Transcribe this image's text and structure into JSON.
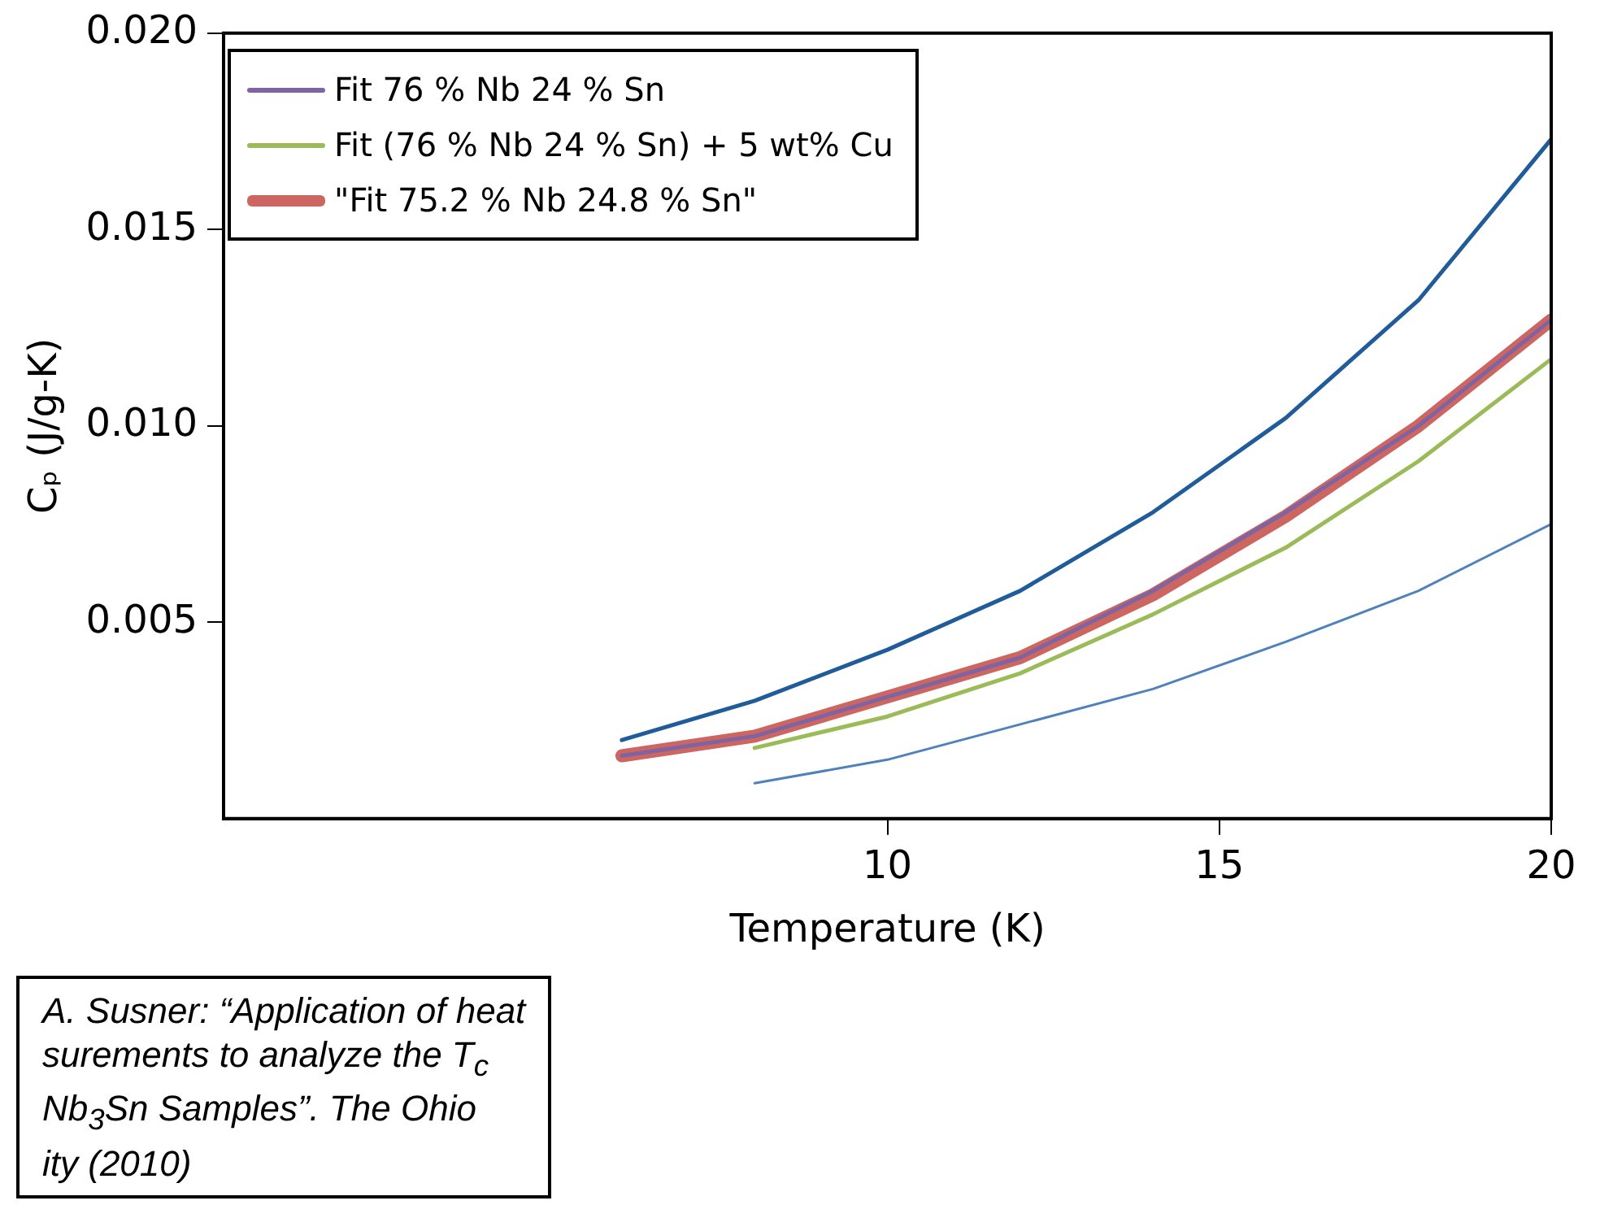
{
  "chart_data": {
    "type": "line",
    "xlabel": "Temperature (K)",
    "ylabel": "Cₚ (J/g-K)",
    "xlim": [
      0,
      20
    ],
    "xticks": [
      10,
      15,
      20
    ],
    "ylim": [
      0,
      0.02
    ],
    "yticks": [
      {
        "value": 0.005,
        "label": "0.005"
      },
      {
        "value": 0.01,
        "label": "0.010"
      },
      {
        "value": 0.015,
        "label": "0.015"
      },
      {
        "value": 0.02,
        "label": "0.020"
      }
    ],
    "legend": "top left",
    "grid": false,
    "marker": "none",
    "line_style": "solid",
    "series": [
      {
        "color": "#4f81bd",
        "x": [
          8,
          10,
          12,
          14,
          16,
          18,
          20
        ],
        "values": [
          0.0009,
          0.0015,
          0.0024,
          0.0033,
          0.0045,
          0.0058,
          0.0075
        ]
      },
      {
        "color": "#1f5c99",
        "x": [
          6,
          8,
          10,
          12,
          14,
          16,
          18,
          20
        ],
        "values": [
          0.002,
          0.003,
          0.0043,
          0.0058,
          0.0078,
          0.0102,
          0.0132,
          0.0173
        ]
      },
      {
        "name": "Fit 76 % Nb 24 % Sn",
        "color": "#8064a2",
        "x": [
          6,
          8,
          10,
          12,
          14,
          16,
          18,
          20
        ],
        "values": [
          0.0016,
          0.0021,
          0.0031,
          0.0041,
          0.0058,
          0.0078,
          0.01,
          0.0127
        ]
      },
      {
        "name": "Fit (76 % Nb 24 % Sn) + 5 wt% Cu",
        "color": "#9bbb59",
        "x": [
          8,
          10,
          12,
          14,
          16,
          18,
          20
        ],
        "values": [
          0.0018,
          0.0026,
          0.0037,
          0.0052,
          0.0069,
          0.0091,
          0.0117
        ]
      },
      {
        "name": "\"Fit 75.2 % Nb 24.8 % Sn\"",
        "color": "#cd6660",
        "x": [
          6,
          8,
          10,
          12,
          14,
          16,
          18,
          20
        ],
        "values": [
          0.0016,
          0.0021,
          0.0031,
          0.0041,
          0.0057,
          0.0077,
          0.01,
          0.0127
        ]
      }
    ],
    "annotations": [
      "A. Susner: “Application of heat",
      "surements to analyze the T$_{c}$",
      "Nb$_{3}$Sn Samples”. The Ohio",
      "ity (2010)"
    ]
  }
}
